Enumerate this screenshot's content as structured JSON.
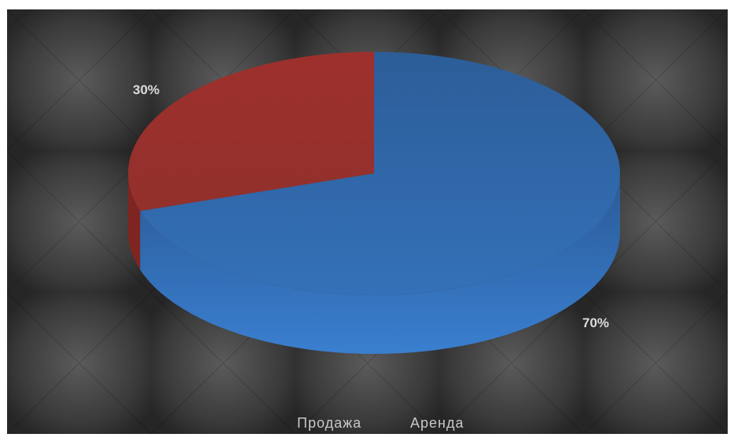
{
  "chart_data": {
    "type": "pie",
    "style": "3d",
    "title": "",
    "categories": [
      "Продажа",
      "Аренда"
    ],
    "values": [
      30,
      70
    ],
    "labels": [
      "30%",
      "70%"
    ],
    "colors": [
      "#9c2f2c",
      "#2d5d9a"
    ],
    "legend": {
      "position": "bottom",
      "entries": [
        "Продажа",
        "Аренда"
      ]
    }
  }
}
